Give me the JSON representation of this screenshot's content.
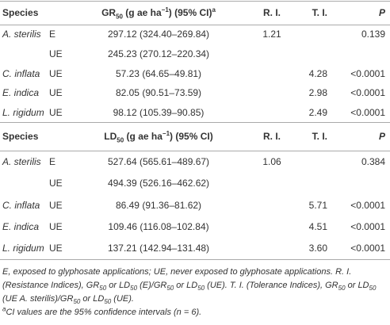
{
  "sections": [
    {
      "header": {
        "species": "Species",
        "measure": [
          {
            "t": "GR"
          },
          {
            "t": "50",
            "style": "sub"
          },
          {
            "t": " (g ae ha"
          },
          {
            "t": "−1",
            "style": "sup"
          },
          {
            "t": ") (95% CI)"
          },
          {
            "t": "a",
            "style": "sup"
          }
        ],
        "ri": "R. I.",
        "ti": "T. I.",
        "p": "P"
      },
      "rows": [
        {
          "species": "A. sterilis",
          "exposure": "E",
          "value": "297.12 (324.40–269.84)",
          "ri": "1.21",
          "p": "0.139"
        },
        {
          "exposure": "UE",
          "value": "245.23 (270.12–220.34)"
        },
        {
          "species": "C. inflata",
          "exposure": "UE",
          "value": "57.23 (64.65–49.81)",
          "ti": "4.28",
          "p": "<0.0001"
        },
        {
          "species": "E. indica",
          "exposure": "UE",
          "value": "82.05 (90.51–73.59)",
          "ti": "2.98",
          "p": "<0.0001"
        },
        {
          "species": "L. rigidum",
          "exposure": "UE",
          "value": "98.12 (105.39–90.85)",
          "ti": "2.49",
          "p": "<0.0001"
        }
      ]
    },
    {
      "header": {
        "species": "Species",
        "measure": [
          {
            "t": "LD"
          },
          {
            "t": "50",
            "style": "sub"
          },
          {
            "t": " (g ae ha"
          },
          {
            "t": "−1",
            "style": "sup"
          },
          {
            "t": ") (95% CI)"
          }
        ],
        "ri": "R. I.",
        "ti": "T. I.",
        "p": "P"
      },
      "rows": [
        {
          "species": "A. sterilis",
          "exposure": "E",
          "value": "527.64 (565.61–489.67)",
          "ri": "1.06",
          "p": "0.384"
        },
        {
          "exposure": "UE",
          "value": "494.39 (526.16–462.62)"
        },
        {
          "species": "C. inflata",
          "exposure": "UE",
          "value": "86.49 (91.36–81.62)",
          "ti": "5.71",
          "p": "<0.0001"
        },
        {
          "species": "E. indica",
          "exposure": "UE",
          "value": "109.46 (116.08–102.84)",
          "ti": "4.51",
          "p": "<0.0001"
        },
        {
          "species": "L. rigidum",
          "exposure": "UE",
          "value": "137.21 (142.94–131.48)",
          "ti": "3.60",
          "p": "<0.0001"
        }
      ]
    }
  ],
  "footnotes": [
    [
      {
        "t": "E, exposed to glyphosate applications; UE, never exposed to glyphosate applications. R. I. (Resistance Indices), GR"
      },
      {
        "t": "50",
        "style": "sub"
      },
      {
        "t": " or LD"
      },
      {
        "t": "50",
        "style": "sub"
      },
      {
        "t": " (E)/GR"
      },
      {
        "t": "50",
        "style": "sub"
      },
      {
        "t": " or LD"
      },
      {
        "t": "50",
        "style": "sub"
      },
      {
        "t": " (UE). T. I. (Tolerance Indices), GR"
      },
      {
        "t": "50",
        "style": "sub"
      },
      {
        "t": " or LD"
      },
      {
        "t": "50",
        "style": "sub"
      },
      {
        "t": " (UE A. sterilis)/GR"
      },
      {
        "t": "50",
        "style": "sub"
      },
      {
        "t": " or LD"
      },
      {
        "t": "50",
        "style": "sub"
      },
      {
        "t": " (UE)."
      }
    ],
    [
      {
        "t": "a",
        "style": "sup"
      },
      {
        "t": "CI values are the 95% confidence intervals (n = 6)."
      }
    ]
  ]
}
